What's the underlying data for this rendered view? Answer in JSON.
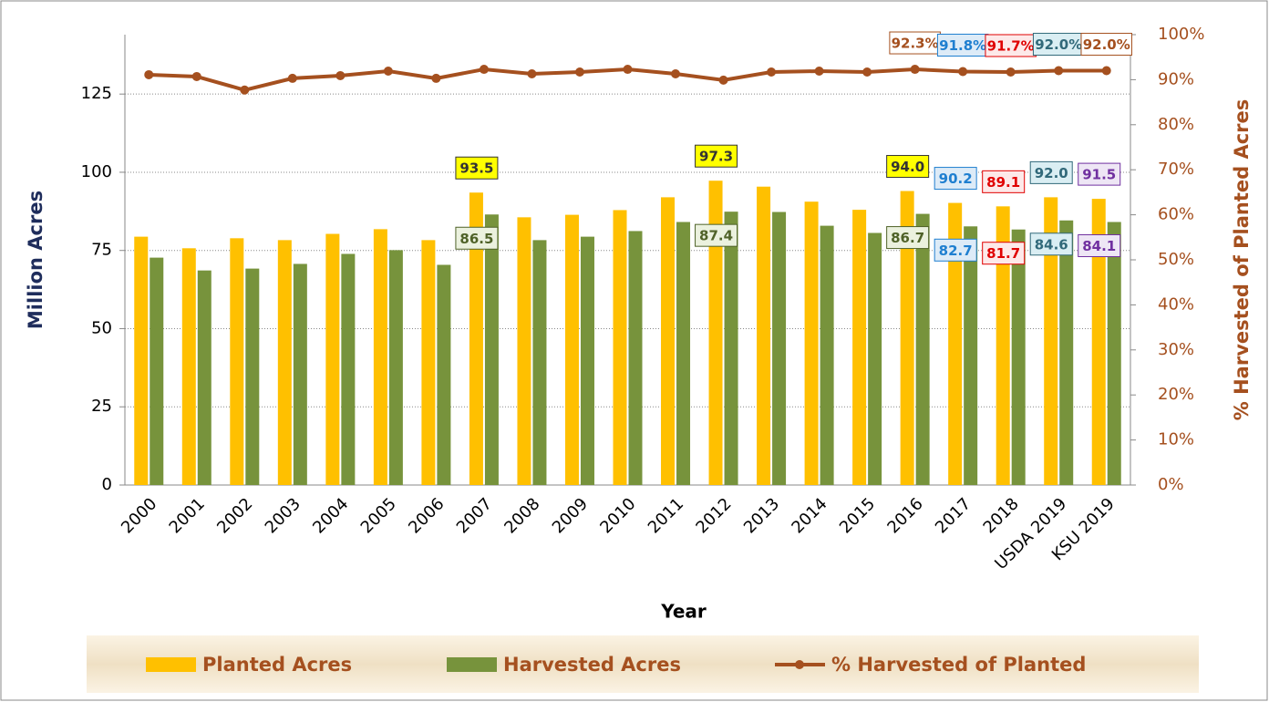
{
  "chart_data": {
    "type": "bar_line",
    "x_label": "Year",
    "y_label": "Million Acres",
    "y2_label": "% Harvested of Planted Acres",
    "categories": [
      "2000",
      "2001",
      "2002",
      "2003",
      "2004",
      "2005",
      "2006",
      "2007",
      "2008",
      "2009",
      "2010",
      "2011",
      "2012",
      "2013",
      "2014",
      "2015",
      "2016",
      "2017",
      "2018",
      "USDA 2019",
      "KSU 2019"
    ],
    "ylim": [
      0,
      144
    ],
    "yticks": [
      0,
      25,
      50,
      75,
      100,
      125
    ],
    "y2lim": [
      0,
      100
    ],
    "y2ticks": [
      {
        "value": 0,
        "label": "0%"
      },
      {
        "value": 10,
        "label": "10%"
      },
      {
        "value": 20,
        "label": "20%"
      },
      {
        "value": 30,
        "label": "30%"
      },
      {
        "value": 40,
        "label": "40%"
      },
      {
        "value": 50,
        "label": "50%"
      },
      {
        "value": 60,
        "label": "60%"
      },
      {
        "value": 70,
        "label": "70%"
      },
      {
        "value": 80,
        "label": "80%"
      },
      {
        "value": 90,
        "label": "90%"
      },
      {
        "value": 100,
        "label": "100%"
      }
    ],
    "grid": true,
    "series": [
      {
        "name": "Planted Acres",
        "type": "bar",
        "color": "#FFC000",
        "values": [
          79.4,
          75.7,
          78.9,
          78.3,
          80.3,
          81.8,
          78.3,
          93.5,
          85.6,
          86.4,
          87.9,
          92.0,
          97.3,
          95.4,
          90.6,
          88.0,
          94.0,
          90.2,
          89.1,
          92.0,
          91.5
        ],
        "value_labels": [
          null,
          null,
          null,
          null,
          null,
          null,
          null,
          "93.5",
          null,
          null,
          null,
          null,
          "97.3",
          null,
          null,
          null,
          "94.0",
          "90.2",
          "89.1",
          "92.0",
          "91.5"
        ],
        "label_styles": [
          null,
          null,
          null,
          null,
          null,
          null,
          null,
          [
            "#333333",
            "#FFFF00"
          ],
          null,
          null,
          null,
          null,
          [
            "#333333",
            "#FFFF00"
          ],
          null,
          null,
          null,
          [
            "#333333",
            "#FFFF00"
          ],
          [
            "#1F7FD0",
            "#DDEBF7"
          ],
          [
            "#E00000",
            "#FDE9E9"
          ],
          [
            "#31697A",
            "#DAEEF3"
          ],
          [
            "#7030A0",
            "#EEE6F5"
          ]
        ]
      },
      {
        "name": "Harvested Acres",
        "type": "bar",
        "color": "#77933C",
        "values": [
          72.7,
          68.6,
          69.2,
          70.7,
          73.9,
          75.1,
          70.4,
          86.5,
          78.3,
          79.4,
          81.2,
          84.1,
          87.4,
          87.3,
          82.9,
          80.6,
          86.7,
          82.7,
          81.7,
          84.6,
          84.1
        ],
        "value_labels": [
          null,
          null,
          null,
          null,
          null,
          null,
          null,
          "86.5",
          null,
          null,
          null,
          null,
          "87.4",
          null,
          null,
          null,
          "86.7",
          "82.7",
          "81.7",
          "84.6",
          "84.1"
        ],
        "label_styles": [
          null,
          null,
          null,
          null,
          null,
          null,
          null,
          [
            "#4F6228",
            "#EBF1DE"
          ],
          null,
          null,
          null,
          null,
          [
            "#4F6228",
            "#EBF1DE"
          ],
          null,
          null,
          null,
          [
            "#4F6228",
            "#EBF1DE"
          ],
          [
            "#1F7FD0",
            "#DDEBF7"
          ],
          [
            "#E00000",
            "#FDE9E9"
          ],
          [
            "#31697A",
            "#DAEEF3"
          ],
          [
            "#7030A0",
            "#EEE6F5"
          ]
        ]
      },
      {
        "name": "% Harvested of Planted",
        "type": "line",
        "axis": "y2",
        "color": "#A5501F",
        "values": [
          91.1,
          90.7,
          87.7,
          90.3,
          90.9,
          91.9,
          90.3,
          92.3,
          91.3,
          91.7,
          92.3,
          91.3,
          89.9,
          91.7,
          91.9,
          91.7,
          92.3,
          91.8,
          91.7,
          92.0,
          92.0
        ],
        "value_labels": [
          null,
          null,
          null,
          null,
          null,
          null,
          null,
          null,
          null,
          null,
          null,
          null,
          null,
          null,
          null,
          null,
          "92.3%",
          "91.8%",
          "91.7%",
          "92.0%",
          "92.0%"
        ],
        "label_styles": [
          null,
          null,
          null,
          null,
          null,
          null,
          null,
          null,
          null,
          null,
          null,
          null,
          null,
          null,
          null,
          null,
          [
            "#A5501F",
            "#FFFFFF"
          ],
          [
            "#1F7FD0",
            "#DDEBF7"
          ],
          [
            "#E00000",
            "#FDE9E9"
          ],
          [
            "#31697A",
            "#DAEEF3"
          ],
          [
            "#A5501F",
            "#FFFFFF"
          ]
        ]
      }
    ]
  }
}
